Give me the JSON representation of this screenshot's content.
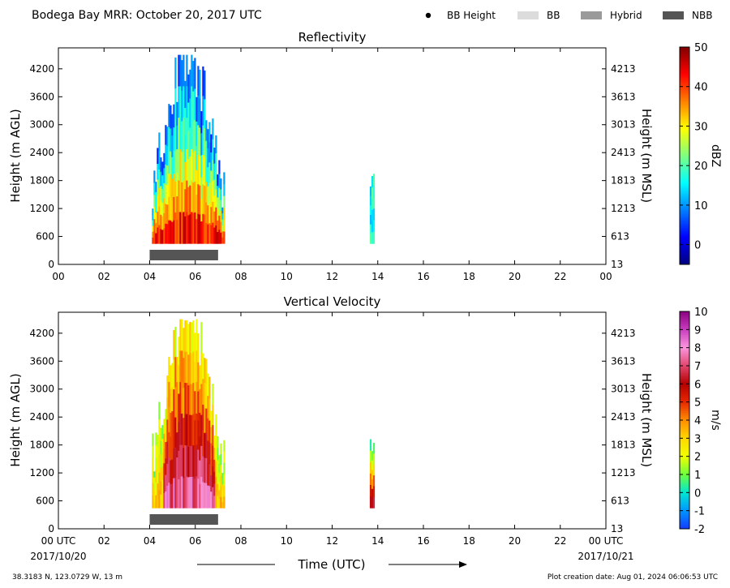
{
  "header": {
    "title": "Bodega Bay MRR:  October 20, 2017 UTC",
    "legend": [
      {
        "label": "BB Height",
        "kind": "dot",
        "color": "#000000"
      },
      {
        "label": "BB",
        "kind": "swatch",
        "color": "#dcdcdc"
      },
      {
        "label": "Hybrid",
        "kind": "swatch",
        "color": "#9a9a9a"
      },
      {
        "label": "NBB",
        "kind": "swatch",
        "color": "#555555"
      }
    ]
  },
  "footer": {
    "location": "38.3183 N, 123.0729 W, 13 m",
    "creation": "Plot creation date: Aug 01, 2024 06:06:53 UTC",
    "xlabel": "Time (UTC)",
    "start_date": "2017/10/20",
    "end_date": "2017/10/21"
  },
  "chart_data": [
    {
      "type": "heatmap",
      "title": "Reflectivity",
      "ylabel": "Height (m AGL)",
      "ylabel_right": "Height (m MSL)",
      "yticks": [
        0,
        600,
        1200,
        1800,
        2400,
        3000,
        3600,
        4200
      ],
      "yticks_right": [
        "13",
        "613",
        "1213",
        "1813",
        "2413",
        "3013",
        "3613",
        "4213"
      ],
      "ylim": [
        0,
        4650
      ],
      "xlim": [
        0,
        24
      ],
      "xticks": [
        "00",
        "02",
        "04",
        "06",
        "08",
        "10",
        "12",
        "14",
        "16",
        "18",
        "20",
        "22",
        "00"
      ],
      "colorbar": {
        "label": "dBZ",
        "ticks": [
          "50",
          "40",
          "30",
          "20",
          "10",
          "0"
        ],
        "min": -5,
        "max": 50
      },
      "nbb_bar": {
        "start_hour": 4.0,
        "end_hour": 7.0
      },
      "echo_regions": [
        {
          "start_hour": 4.1,
          "end_hour": 7.3,
          "base_m": 450,
          "top_m": 4500
        },
        {
          "start_hour": 13.65,
          "end_hour": 13.8,
          "base_m": 450,
          "top_m": 1950
        }
      ]
    },
    {
      "type": "heatmap",
      "title": "Vertical Velocity",
      "ylabel": "Height (m AGL)",
      "ylabel_right": "Height (m MSL)",
      "yticks": [
        0,
        600,
        1200,
        1800,
        2400,
        3000,
        3600,
        4200
      ],
      "yticks_right": [
        "13",
        "613",
        "1213",
        "1813",
        "2413",
        "3013",
        "3613",
        "4213"
      ],
      "ylim": [
        0,
        4650
      ],
      "xlim": [
        0,
        24
      ],
      "xticks": [
        "00 UTC",
        "02",
        "04",
        "06",
        "08",
        "10",
        "12",
        "14",
        "16",
        "18",
        "20",
        "22",
        "00 UTC"
      ],
      "colorbar": {
        "label": "m/s",
        "ticks": [
          "10",
          "9",
          "8",
          "7",
          "6",
          "5",
          "4",
          "3",
          "2",
          "1",
          "0",
          "-1",
          "-2"
        ],
        "min": -2,
        "max": 10
      },
      "nbb_bar": {
        "start_hour": 4.0,
        "end_hour": 7.0
      },
      "echo_regions": [
        {
          "start_hour": 4.1,
          "end_hour": 7.3,
          "base_m": 450,
          "top_m": 4500
        },
        {
          "start_hour": 13.65,
          "end_hour": 13.8,
          "base_m": 450,
          "top_m": 1950
        }
      ]
    }
  ]
}
